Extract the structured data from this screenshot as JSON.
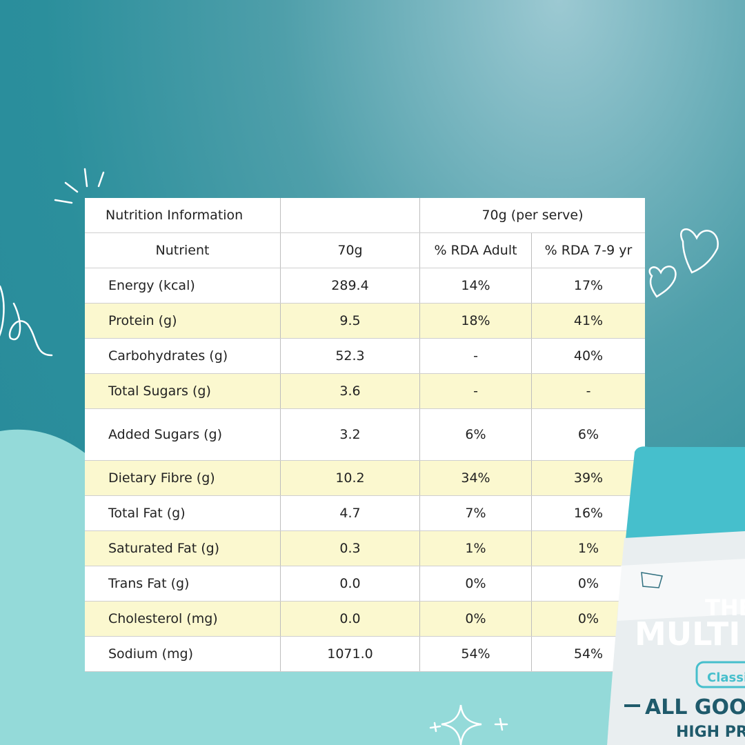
{
  "table": {
    "header": [
      [
        "Nutrition Information",
        "",
        "70g (per serve)"
      ],
      [
        "Nutrient",
        "70g",
        "% RDA Adult",
        "% RDA 7-9 yr"
      ]
    ],
    "rows": [
      [
        "Energy (kcal)",
        "289.4",
        "14%",
        "17%"
      ],
      [
        "Protein (g)",
        "9.5",
        "18%",
        "41%"
      ],
      [
        "Carbohydrates (g)",
        "52.3",
        "-",
        "40%"
      ],
      [
        "Total Sugars (g)",
        "3.6",
        "-",
        "-"
      ],
      [
        "Added Sugars (g)",
        "3.2",
        "6%",
        "6%"
      ],
      [
        "Dietary Fibre (g)",
        "10.2",
        "34%",
        "39%"
      ],
      [
        "Total Fat (g)",
        "4.7",
        "7%",
        "16%"
      ],
      [
        "Saturated Fat (g)",
        "0.3",
        "1%",
        "1%"
      ],
      [
        "Trans Fat (g)",
        "0.0",
        "0%",
        "0%"
      ],
      [
        "Cholesterol (mg)",
        "0.0",
        "0%",
        "0%"
      ],
      [
        "Sodium (mg)",
        "1071.0",
        "54%",
        "54%"
      ]
    ]
  },
  "package": {
    "texts": [
      "THE",
      "MULTI MI",
      "Classi",
      "ALL GOOD I",
      "HIGH PROT"
    ]
  }
}
